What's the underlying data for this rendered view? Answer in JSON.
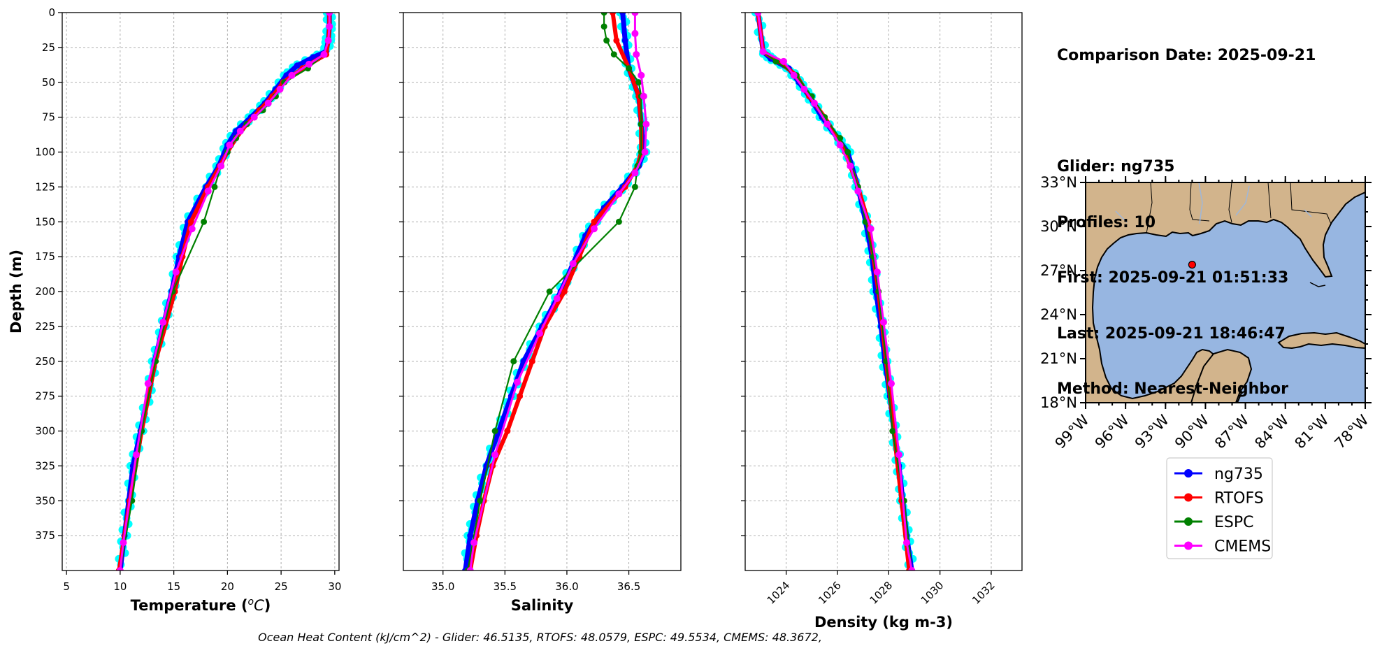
{
  "info": {
    "comparison_date": "Comparison Date: 2025-09-21",
    "glider": "Glider: ng735",
    "profiles": "Profiles: 10",
    "first": "First: 2025-09-21 01:51:33",
    "last": "Last: 2025-09-21 18:46:47",
    "method": "Method: Nearest-Neighbor"
  },
  "footer": "Ocean Heat Content (kJ/cm^2) - Glider: 46.5135,  RTOFS: 48.0579,  ESPC: 49.5534,  CMEMS: 48.3672,",
  "chart_data": [
    {
      "type": "line",
      "xlabel": "Temperature (°C)",
      "ylabel": "Depth (m)",
      "xlim": [
        4.6,
        30.4
      ],
      "ylim": [
        400,
        0
      ],
      "xticks": [
        5,
        10,
        15,
        20,
        25,
        30
      ],
      "yticks": [
        0,
        25,
        50,
        75,
        100,
        125,
        150,
        175,
        200,
        225,
        250,
        275,
        300,
        325,
        350,
        375
      ],
      "grid": true,
      "series": [
        {
          "name": "ng735",
          "color": "#0000ff",
          "depth": [
            0,
            10,
            20,
            28,
            32,
            38,
            45,
            55,
            65,
            75,
            85,
            95,
            110,
            125,
            150,
            175,
            200,
            225,
            250,
            275,
            300,
            325,
            350,
            375,
            400
          ],
          "values": [
            29.5,
            29.5,
            29.4,
            29.2,
            28.0,
            26.5,
            25.5,
            24.5,
            23.5,
            22.2,
            20.8,
            20.0,
            19.2,
            18.0,
            16.3,
            15.5,
            14.8,
            14.0,
            13.2,
            12.6,
            11.9,
            11.2,
            10.8,
            10.4,
            10.0
          ]
        },
        {
          "name": "RTOFS",
          "color": "#ff0000",
          "depth": [
            0,
            10,
            20,
            30,
            40,
            50,
            60,
            70,
            80,
            90,
            100,
            110,
            125,
            150,
            175,
            200,
            250,
            300,
            350,
            400
          ],
          "values": [
            29.5,
            29.5,
            29.4,
            29.2,
            27.0,
            25.2,
            24.2,
            23.0,
            21.8,
            20.8,
            20.0,
            19.3,
            18.2,
            16.6,
            15.8,
            15.1,
            13.3,
            12.0,
            10.9,
            9.9
          ]
        },
        {
          "name": "ESPC",
          "color": "#008000",
          "depth": [
            30,
            40,
            50,
            60,
            70,
            80,
            90,
            100,
            110,
            125,
            150,
            200,
            250,
            300,
            350,
            400
          ],
          "values": [
            29.0,
            27.5,
            25.3,
            24.5,
            23.3,
            21.8,
            20.8,
            20.0,
            19.4,
            18.8,
            17.8,
            14.9,
            13.3,
            12.0,
            11.1,
            10.0
          ]
        },
        {
          "name": "CMEMS",
          "color": "#ff00ff",
          "depth": [
            0,
            10,
            20,
            30,
            37,
            45,
            55,
            65,
            75,
            85,
            95,
            110,
            128,
            155,
            186,
            222,
            266,
            317,
            380,
            400
          ],
          "values": [
            29.5,
            29.5,
            29.4,
            29.0,
            27.6,
            26.0,
            24.9,
            23.8,
            22.5,
            21.2,
            20.2,
            19.4,
            18.2,
            16.7,
            15.2,
            14.0,
            12.6,
            11.5,
            10.3,
            10.0
          ]
        }
      ]
    },
    {
      "type": "line",
      "xlabel": "Salinity",
      "xlim": [
        34.68,
        36.92
      ],
      "ylim": [
        400,
        0
      ],
      "xticks": [
        35.0,
        35.5,
        36.0,
        36.5
      ],
      "grid": true,
      "series": [
        {
          "name": "ng735",
          "color": "#0000ff",
          "depth": [
            0,
            20,
            40,
            60,
            80,
            100,
            110,
            125,
            140,
            160,
            180,
            200,
            225,
            250,
            275,
            300,
            325,
            350,
            375,
            400
          ],
          "values": [
            36.45,
            36.47,
            36.5,
            36.58,
            36.6,
            36.62,
            36.58,
            36.45,
            36.3,
            36.15,
            36.05,
            35.95,
            35.8,
            35.65,
            35.55,
            35.45,
            35.35,
            35.28,
            35.22,
            35.18
          ]
        },
        {
          "name": "RTOFS",
          "color": "#ff0000",
          "depth": [
            0,
            20,
            40,
            60,
            80,
            100,
            110,
            125,
            150,
            175,
            200,
            225,
            250,
            275,
            300,
            325,
            350,
            375,
            400
          ],
          "values": [
            36.37,
            36.4,
            36.5,
            36.58,
            36.6,
            36.6,
            36.57,
            36.47,
            36.22,
            36.1,
            35.98,
            35.82,
            35.72,
            35.62,
            35.52,
            35.4,
            35.33,
            35.27,
            35.22
          ]
        },
        {
          "name": "ESPC",
          "color": "#008000",
          "depth": [
            0,
            10,
            20,
            30,
            40,
            50,
            60,
            80,
            100,
            110,
            125,
            150,
            200,
            250,
            300,
            350,
            400
          ],
          "values": [
            36.3,
            36.3,
            36.32,
            36.38,
            36.5,
            36.58,
            36.6,
            36.6,
            36.6,
            36.57,
            36.55,
            36.42,
            35.86,
            35.57,
            35.42,
            35.3,
            35.2
          ]
        },
        {
          "name": "CMEMS",
          "color": "#ff00ff",
          "depth": [
            0,
            15,
            30,
            45,
            60,
            80,
            100,
            115,
            130,
            155,
            180,
            205,
            230,
            265,
            317,
            380,
            400
          ],
          "values": [
            36.55,
            36.55,
            36.56,
            36.6,
            36.62,
            36.64,
            36.63,
            36.55,
            36.42,
            36.22,
            36.05,
            35.92,
            35.78,
            35.6,
            35.42,
            35.25,
            35.22
          ]
        }
      ]
    },
    {
      "type": "line",
      "xlabel": "Density (kg m-3)",
      "xlim": [
        1022.4,
        1033.2
      ],
      "ylim": [
        400,
        0
      ],
      "xticks": [
        1024,
        1026,
        1028,
        1030,
        1032
      ],
      "grid": true,
      "series": [
        {
          "name": "ng735",
          "color": "#0000ff",
          "depth": [
            0,
            28,
            33,
            40,
            50,
            60,
            75,
            90,
            100,
            125,
            150,
            175,
            200,
            225,
            250,
            275,
            300,
            325,
            350,
            375,
            400
          ],
          "values": [
            1022.9,
            1023.1,
            1023.4,
            1024.1,
            1024.5,
            1024.9,
            1025.4,
            1026.0,
            1026.4,
            1026.8,
            1027.1,
            1027.35,
            1027.5,
            1027.7,
            1027.85,
            1028.05,
            1028.2,
            1028.4,
            1028.55,
            1028.7,
            1028.9
          ]
        },
        {
          "name": "RTOFS",
          "color": "#ff0000",
          "depth": [
            0,
            28,
            35,
            45,
            60,
            75,
            90,
            100,
            125,
            150,
            175,
            200,
            250,
            300,
            350,
            400
          ],
          "values": [
            1022.9,
            1023.1,
            1023.7,
            1024.4,
            1024.9,
            1025.5,
            1026.0,
            1026.3,
            1026.8,
            1027.2,
            1027.4,
            1027.6,
            1027.9,
            1028.2,
            1028.5,
            1028.8
          ]
        },
        {
          "name": "ESPC",
          "color": "#008000",
          "depth": [
            0,
            28,
            35,
            45,
            60,
            75,
            90,
            100,
            125,
            150,
            175,
            200,
            250,
            300,
            350,
            400
          ],
          "values": [
            1022.9,
            1023.1,
            1023.6,
            1024.4,
            1025.0,
            1025.5,
            1026.1,
            1026.4,
            1026.8,
            1027.1,
            1027.4,
            1027.6,
            1027.9,
            1028.15,
            1028.6,
            1028.9
          ]
        },
        {
          "name": "CMEMS",
          "color": "#ff00ff",
          "depth": [
            0,
            28,
            35,
            45,
            55,
            65,
            80,
            95,
            110,
            128,
            155,
            186,
            222,
            266,
            317,
            380,
            400
          ],
          "values": [
            1022.9,
            1023.1,
            1023.9,
            1024.3,
            1024.7,
            1025.1,
            1025.6,
            1026.1,
            1026.5,
            1026.8,
            1027.3,
            1027.55,
            1027.8,
            1028.1,
            1028.4,
            1028.7,
            1028.9
          ]
        }
      ]
    }
  ],
  "map": {
    "lat_ticks": [
      "33°N",
      "30°N",
      "27°N",
      "24°N",
      "21°N",
      "18°N"
    ],
    "lon_ticks": [
      "99°W",
      "96°W",
      "93°W",
      "90°W",
      "87°W",
      "84°W",
      "81°W",
      "78°W"
    ],
    "lat_range": [
      18,
      33
    ],
    "lon_range": [
      -99,
      -78
    ],
    "glider_position": {
      "lon": -91.0,
      "lat": 27.4
    },
    "land_color": "#d2b48c",
    "ocean_color": "#97b6e1"
  },
  "legend": [
    {
      "label": "ng735",
      "color": "#0000ff"
    },
    {
      "label": "RTOFS",
      "color": "#ff0000"
    },
    {
      "label": "ESPC",
      "color": "#008000"
    },
    {
      "label": "CMEMS",
      "color": "#ff00ff"
    }
  ]
}
